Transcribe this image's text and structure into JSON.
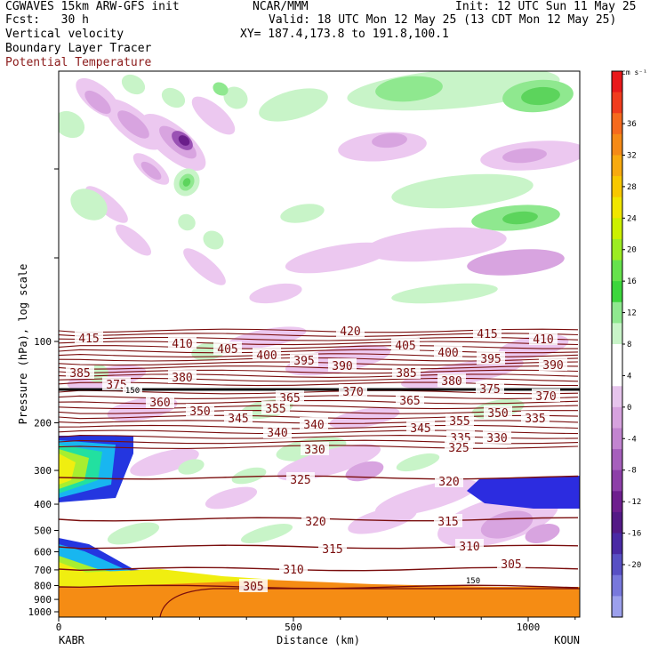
{
  "header": {
    "model": "CGWAVES 15km ARW-GFS init",
    "org": "NCAR/MMM",
    "init": "Init: 12 UTC Sun 11 May 25",
    "fcst": "Fcst:   30 h",
    "valid": "Valid: 18 UTC Mon 12 May 25 (13 CDT Mon 12 May 25)",
    "field1": "Vertical velocity",
    "field2": "Boundary Layer Tracer",
    "field3": "Potential Temperature",
    "xy": "XY= 187.4,173.8 to 191.8,100.1"
  },
  "colors": {
    "theta_contour": "#7a0d0d",
    "header_red": "#8b1a1a",
    "tracer": "#1a1a1a"
  },
  "chart_data": {
    "type": "heatmap",
    "xlabel": "Distance (km)",
    "ylabel": "Pressure (hPa), log scale",
    "x_ticks": [
      "0",
      "500",
      "1000"
    ],
    "x_range": [
      0,
      1110
    ],
    "y_ticks": [
      "100",
      "200",
      "300",
      "400",
      "500",
      "600",
      "700",
      "800",
      "900",
      "1000"
    ],
    "y_scale": "log",
    "endpoints": {
      "left": "KABR",
      "right": "KOUN"
    },
    "colorbar": {
      "unit": "cm s⁻¹",
      "ticks": [
        "36",
        "32",
        "28",
        "24",
        "20",
        "16",
        "12",
        "8",
        "4",
        "0",
        "-4",
        "-8",
        "-12",
        "-16",
        "-20"
      ],
      "colors": [
        "#e8191b",
        "#f03c1e",
        "#f56a1e",
        "#f58a17",
        "#f8aa0f",
        "#f8c800",
        "#f0e600",
        "#ccf000",
        "#9cec22",
        "#66e24c",
        "#3cd63c",
        "#8fe88f",
        "#c8f4c8",
        "#ffffff",
        "#ffffff",
        "#e6c4ec",
        "#d6a2de",
        "#c284d0",
        "#a65fbc",
        "#8d3fa8",
        "#6e1f8e",
        "#541a86",
        "#4a2aa4",
        "#5850c4",
        "#7878dc",
        "#9ca0ec"
      ]
    },
    "theta_labels": [
      "415",
      "410",
      "405",
      "400",
      "395",
      "390",
      "420",
      "405",
      "400",
      "415",
      "410",
      "395",
      "390",
      "385",
      "380",
      "385",
      "380",
      "375",
      "370",
      "375",
      "370",
      "360",
      "365",
      "365",
      "350",
      "345",
      "355",
      "340",
      "345",
      "355",
      "350",
      "335",
      "340",
      "335",
      "330",
      "330",
      "325",
      "325",
      "320",
      "320",
      "315",
      "315",
      "310",
      "310",
      "305",
      "305",
      "150",
      "150"
    ]
  }
}
